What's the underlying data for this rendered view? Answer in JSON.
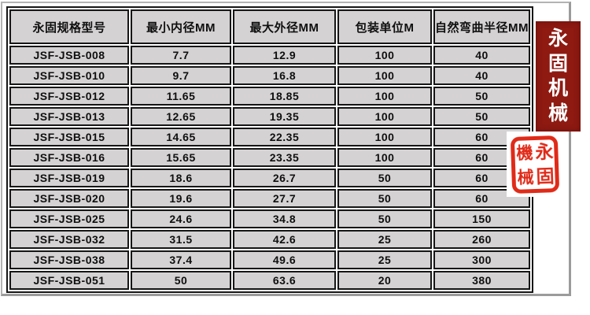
{
  "table": {
    "headers": [
      "永固规格型号",
      "最小内径MM",
      "最大外径MM",
      "包装单位M",
      "自然弯曲半径MM"
    ],
    "rows": [
      [
        "JSF-JSB-008",
        "7.7",
        "12.9",
        "100",
        "40"
      ],
      [
        "JSF-JSB-010",
        "9.7",
        "16.8",
        "100",
        "40"
      ],
      [
        "JSF-JSB-012",
        "11.65",
        "18.85",
        "100",
        "50"
      ],
      [
        "JSF-JSB-013",
        "12.65",
        "19.35",
        "100",
        "50"
      ],
      [
        "JSF-JSB-015",
        "14.65",
        "22.35",
        "100",
        "60"
      ],
      [
        "JSF-JSB-016",
        "15.65",
        "23.35",
        "100",
        "60"
      ],
      [
        "JSF-JSB-019",
        "18.6",
        "26.7",
        "50",
        "60"
      ],
      [
        "JSF-JSB-020",
        "19.6",
        "27.7",
        "50",
        "60"
      ],
      [
        "JSF-JSB-025",
        "24.6",
        "34.8",
        "50",
        "150"
      ],
      [
        "JSF-JSB-032",
        "31.5",
        "42.6",
        "25",
        "260"
      ],
      [
        "JSF-JSB-038",
        "37.4",
        "49.6",
        "25",
        "300"
      ],
      [
        "JSF-JSB-051",
        "50",
        "63.6",
        "20",
        "380"
      ]
    ]
  },
  "brand": {
    "banner_text": "永固机械",
    "banner_chars": [
      "永",
      "固",
      "机",
      "械"
    ],
    "banner_bg": "#8e1a12",
    "banner_text_color": "#ffffff",
    "seal_text": "永固機械",
    "seal_chars": [
      "機",
      "永",
      "械",
      "固"
    ],
    "seal_color": "#e02a18"
  },
  "colors": {
    "cell_bg": "#d5d2d3",
    "table_border": "#161616",
    "frame_border": "#9b9b9b"
  }
}
